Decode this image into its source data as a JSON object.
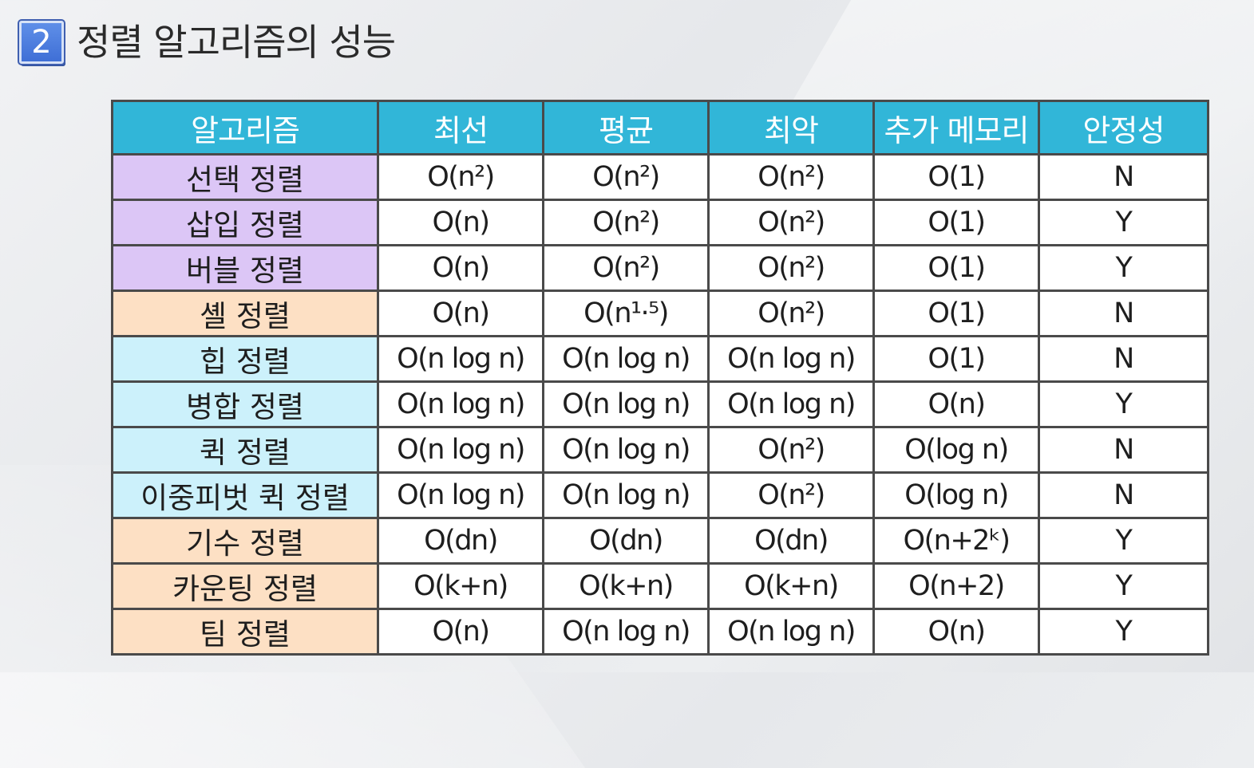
{
  "header": {
    "badge_number": "2",
    "title": "정렬 알고리즘의 성능",
    "badge_color": "#4a7be0"
  },
  "table": {
    "header_color": "#31b6d8",
    "columns": [
      "알고리즘",
      "최선",
      "평균",
      "최악",
      "추가 메모리",
      "안정성"
    ],
    "rows": [
      {
        "group": "purple",
        "cells": [
          "선택 정렬",
          "O(n²)",
          "O(n²)",
          "O(n²)",
          "O(1)",
          "N"
        ]
      },
      {
        "group": "purple",
        "cells": [
          "삽입 정렬",
          "O(n)",
          "O(n²)",
          "O(n²)",
          "O(1)",
          "Y"
        ]
      },
      {
        "group": "purple",
        "cells": [
          "버블 정렬",
          "O(n)",
          "O(n²)",
          "O(n²)",
          "O(1)",
          "Y"
        ]
      },
      {
        "group": "peach",
        "cells": [
          "셸 정렬",
          "O(n)",
          "O(n¹·⁵)",
          "O(n²)",
          "O(1)",
          "N"
        ]
      },
      {
        "group": "cyan",
        "cells": [
          "힙 정렬",
          "O(n log n)",
          "O(n log n)",
          "O(n log n)",
          "O(1)",
          "N"
        ]
      },
      {
        "group": "cyan",
        "cells": [
          "병합 정렬",
          "O(n log n)",
          "O(n log n)",
          "O(n log n)",
          "O(n)",
          "Y"
        ]
      },
      {
        "group": "cyan",
        "cells": [
          "퀵 정렬",
          "O(n log n)",
          "O(n log n)",
          "O(n²)",
          "O(log n)",
          "N"
        ]
      },
      {
        "group": "cyan",
        "cells": [
          "이중피벗 퀵 정렬",
          "O(n log n)",
          "O(n log n)",
          "O(n²)",
          "O(log n)",
          "N"
        ]
      },
      {
        "group": "peach",
        "cells": [
          "기수 정렬",
          "O(dn)",
          "O(dn)",
          "O(dn)",
          "O(n+2ᵏ)",
          "Y"
        ]
      },
      {
        "group": "peach",
        "cells": [
          "카운팅 정렬",
          "O(k+n)",
          "O(k+n)",
          "O(k+n)",
          "O(n+2)",
          "Y"
        ]
      },
      {
        "group": "peach",
        "cells": [
          "팀 정렬",
          "O(n)",
          "O(n log n)",
          "O(n log n)",
          "O(n)",
          "Y"
        ]
      }
    ],
    "group_colors": {
      "purple": "#dcc6f6",
      "peach": "#fde0c4",
      "cyan": "#ccf1fb"
    }
  }
}
